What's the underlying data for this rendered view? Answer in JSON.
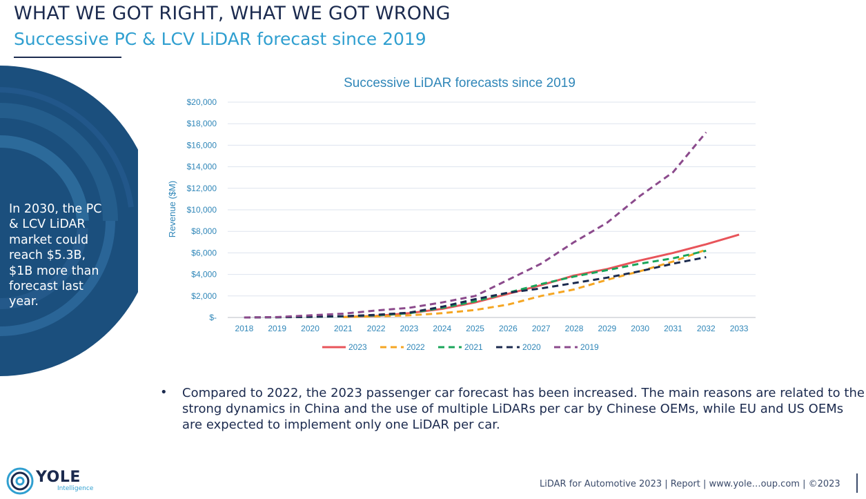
{
  "header": {
    "title": "WHAT WE GOT RIGHT, WHAT WE GOT WRONG",
    "subtitle": "Successive PC & LCV LiDAR forecast since 2019"
  },
  "side_panel": {
    "text": "In 2030, the PC & LCV LiDAR market could reach $5.3B, $1B more than forecast last year.",
    "color": "#1b4f7d"
  },
  "body": {
    "bullet_symbol": "•",
    "text": "Compared to 2022, the 2023 passenger car forecast has been increased. The main reasons are related to the strong dynamics in China and the use of multiple LiDARs per car by Chinese OEMs, while EU and US OEMs are expected to implement only one LiDAR per car."
  },
  "logo": {
    "word": "YOLE",
    "sub": "Intelligence"
  },
  "footer": {
    "text": "LiDAR for Automotive 2023 | Report | www.yole…oup.com | ©2023"
  },
  "chart_data": {
    "type": "line",
    "title": "Successive LiDAR forecasts since 2019",
    "ylabel": "Revenue ($M)",
    "xlabel": "",
    "ylim": [
      0,
      20000
    ],
    "yticks": [
      0,
      2000,
      4000,
      6000,
      8000,
      10000,
      12000,
      14000,
      16000,
      18000,
      20000
    ],
    "ytick_labels": [
      "$-",
      "$2,000",
      "$4,000",
      "$6,000",
      "$8,000",
      "$10,000",
      "$12,000",
      "$14,000",
      "$16,000",
      "$18,000",
      "$20,000"
    ],
    "categories": [
      "2018",
      "2019",
      "2020",
      "2021",
      "2022",
      "2023",
      "2024",
      "2025",
      "2026",
      "2027",
      "2028",
      "2029",
      "2030",
      "2031",
      "2032",
      "2033"
    ],
    "grid": true,
    "legend_position": "bottom",
    "series": [
      {
        "name": "2023",
        "color": "#e8545a",
        "dashed": false,
        "values": [
          null,
          null,
          null,
          50,
          150,
          400,
          800,
          1400,
          2200,
          3000,
          3900,
          4500,
          5300,
          6000,
          6800,
          7700
        ]
      },
      {
        "name": "2022",
        "color": "#f5a623",
        "dashed": true,
        "values": [
          null,
          null,
          null,
          40,
          100,
          200,
          400,
          700,
          1200,
          2000,
          2600,
          3500,
          4300,
          5200,
          6300,
          null
        ]
      },
      {
        "name": "2021",
        "color": "#1aa55a",
        "dashed": true,
        "values": [
          0,
          20,
          50,
          100,
          200,
          400,
          900,
          1500,
          2300,
          3100,
          3800,
          4400,
          5000,
          5500,
          6200,
          null
        ]
      },
      {
        "name": "2020",
        "color": "#1b2a4e",
        "dashed": true,
        "values": [
          0,
          20,
          60,
          120,
          250,
          450,
          1000,
          1700,
          2300,
          2700,
          3200,
          3700,
          4300,
          5000,
          5600,
          null
        ]
      },
      {
        "name": "2019",
        "color": "#8b4a8c",
        "dashed": true,
        "values": [
          0,
          40,
          200,
          350,
          650,
          900,
          1400,
          2000,
          3500,
          5000,
          7000,
          8800,
          11300,
          13500,
          17200,
          null
        ]
      }
    ]
  }
}
